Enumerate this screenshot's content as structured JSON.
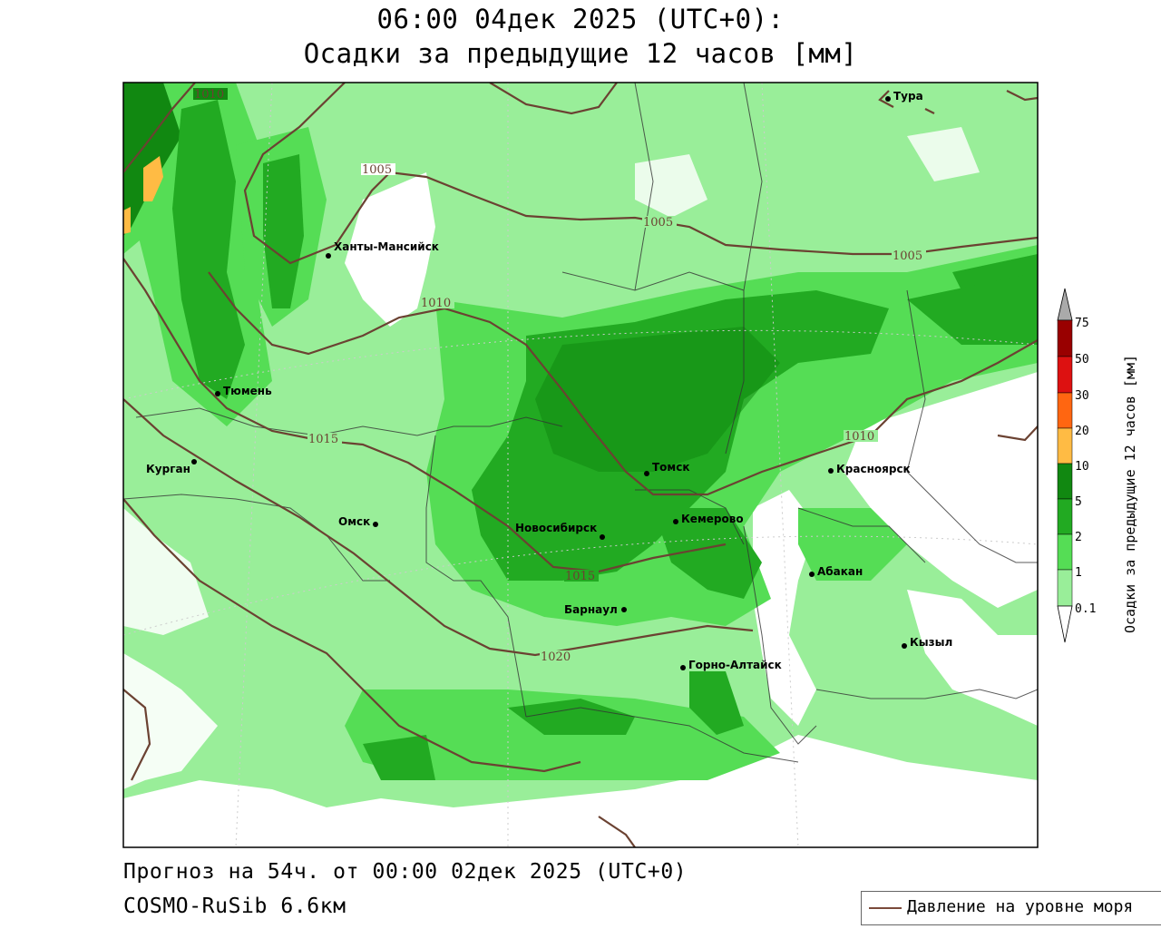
{
  "header": {
    "title_line1": "06:00 04дек 2025 (UTC+0):",
    "title_line2": "Осадки за предыдущие 12 часов [мм]"
  },
  "footer": {
    "forecast": "Прогноз на 54ч. от 00:00 02дек 2025 (UTC+0)",
    "model": "COSMO-RuSib 6.6км"
  },
  "legend": {
    "pressure_label": "Давление на уровне моря",
    "pressure_color": "#7a4a3a"
  },
  "colorbar": {
    "title": "Осадки за предыдущие 12 часов [мм]",
    "levels": [
      "0.1",
      "1",
      "2",
      "5",
      "10",
      "20",
      "30",
      "50",
      "75"
    ],
    "colors": [
      "#ffffff",
      "#99ee99",
      "#55dd55",
      "#22aa22",
      "#118811",
      "#ffbb44",
      "#ff7711",
      "#ee2211",
      "#cc0000",
      "#990000",
      "#aaaaaa"
    ]
  },
  "map": {
    "cities": [
      {
        "name": "Тура"
      },
      {
        "name": "Ханты-Мансийск"
      },
      {
        "name": "Тюмень"
      },
      {
        "name": "Курган"
      },
      {
        "name": "Омск"
      },
      {
        "name": "Томск"
      },
      {
        "name": "Красноярск"
      },
      {
        "name": "Кемерово"
      },
      {
        "name": "Новосибирск"
      },
      {
        "name": "Абакан"
      },
      {
        "name": "Барнаул"
      },
      {
        "name": "Кызыл"
      },
      {
        "name": "Горно-Алтайск"
      }
    ],
    "isobars": [
      "1010",
      "1005",
      "1005",
      "1005",
      "1010",
      "1015",
      "1010",
      "1015",
      "1020"
    ]
  }
}
